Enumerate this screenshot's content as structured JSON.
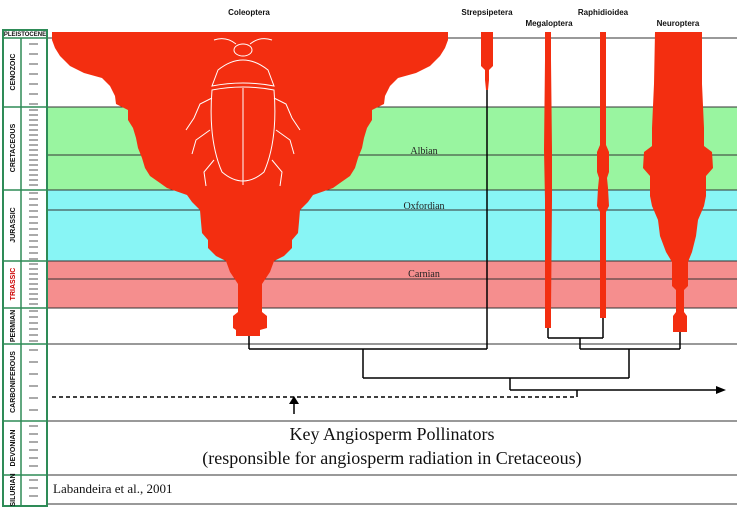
{
  "clades": {
    "coleoptera": "Coleoptera",
    "strepsiptera": "Strepsipetera",
    "megaloptera": "Megaloptera",
    "raphidioidea": "Raphidioidea",
    "neuroptera": "Neuroptera"
  },
  "periods": {
    "pleistocene": "PLEISTOCENE",
    "cenozoic": "CENOZOIC",
    "cretaceous": "CRETACEOUS",
    "jurassic": "JURASSIC",
    "triassic": "TRIASSIC",
    "permian": "PERMIAN",
    "carboniferous": "CARBONIFEROUS",
    "devonian": "DEVONIAN",
    "silurian": "SILURIAN"
  },
  "stages": {
    "albian": "Albian",
    "oxfordian": "Oxfordian",
    "carnian": "Carnian"
  },
  "title": {
    "line1": "Key Angiosperm Pollinators",
    "line2": "(responsible for angiosperm radiation in Cretaceous)"
  },
  "citation": "Labandeira et al., 2001",
  "colors": {
    "cretaceous_band": "#99f5a0",
    "jurassic_band": "#88f5f5",
    "triassic_band": "#f58e8e",
    "clade_fill": "#f32e10",
    "timescale_border": "#2e8b57"
  }
}
